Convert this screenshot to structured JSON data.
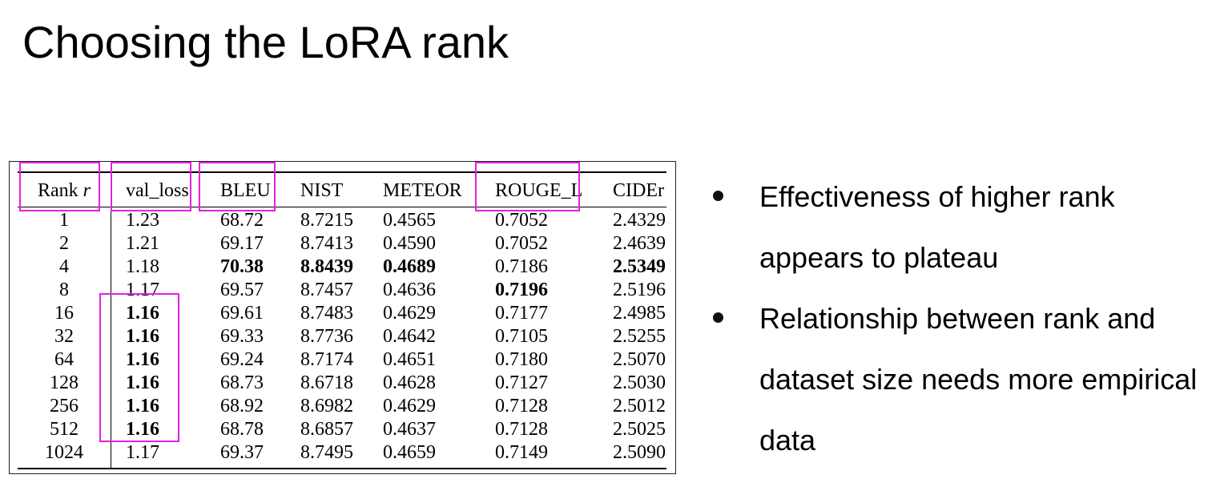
{
  "title": "Choosing the LoRA rank",
  "table": {
    "headers": [
      "Rank r",
      "val_loss",
      "BLEU",
      "NIST",
      "METEOR",
      "ROUGE_L",
      "CIDEr"
    ],
    "rows": [
      {
        "rank": "1",
        "val_loss": "1.23",
        "bleu": "68.72",
        "nist": "8.7215",
        "meteor": "0.4565",
        "rouge": "0.7052",
        "cider": "2.4329"
      },
      {
        "rank": "2",
        "val_loss": "1.21",
        "bleu": "69.17",
        "nist": "8.7413",
        "meteor": "0.4590",
        "rouge": "0.7052",
        "cider": "2.4639"
      },
      {
        "rank": "4",
        "val_loss": "1.18",
        "bleu": "70.38",
        "nist": "8.8439",
        "meteor": "0.4689",
        "rouge": "0.7186",
        "cider": "2.5349"
      },
      {
        "rank": "8",
        "val_loss": "1.17",
        "bleu": "69.57",
        "nist": "8.7457",
        "meteor": "0.4636",
        "rouge": "0.7196",
        "cider": "2.5196"
      },
      {
        "rank": "16",
        "val_loss": "1.16",
        "bleu": "69.61",
        "nist": "8.7483",
        "meteor": "0.4629",
        "rouge": "0.7177",
        "cider": "2.4985"
      },
      {
        "rank": "32",
        "val_loss": "1.16",
        "bleu": "69.33",
        "nist": "8.7736",
        "meteor": "0.4642",
        "rouge": "0.7105",
        "cider": "2.5255"
      },
      {
        "rank": "64",
        "val_loss": "1.16",
        "bleu": "69.24",
        "nist": "8.7174",
        "meteor": "0.4651",
        "rouge": "0.7180",
        "cider": "2.5070"
      },
      {
        "rank": "128",
        "val_loss": "1.16",
        "bleu": "68.73",
        "nist": "8.6718",
        "meteor": "0.4628",
        "rouge": "0.7127",
        "cider": "2.5030"
      },
      {
        "rank": "256",
        "val_loss": "1.16",
        "bleu": "68.92",
        "nist": "8.6982",
        "meteor": "0.4629",
        "rouge": "0.7128",
        "cider": "2.5012"
      },
      {
        "rank": "512",
        "val_loss": "1.16",
        "bleu": "68.78",
        "nist": "8.6857",
        "meteor": "0.4637",
        "rouge": "0.7128",
        "cider": "2.5025"
      },
      {
        "rank": "1024",
        "val_loss": "1.17",
        "bleu": "69.37",
        "nist": "8.7495",
        "meteor": "0.4659",
        "rouge": "0.7149",
        "cider": "2.5090"
      }
    ],
    "bold_cells": [
      {
        "row": 2,
        "col": "bleu"
      },
      {
        "row": 2,
        "col": "nist"
      },
      {
        "row": 2,
        "col": "meteor"
      },
      {
        "row": 2,
        "col": "cider"
      },
      {
        "row": 3,
        "col": "rouge"
      },
      {
        "row": 4,
        "col": "val_loss"
      },
      {
        "row": 5,
        "col": "val_loss"
      },
      {
        "row": 6,
        "col": "val_loss"
      },
      {
        "row": 7,
        "col": "val_loss"
      },
      {
        "row": 8,
        "col": "val_loss"
      },
      {
        "row": 9,
        "col": "val_loss"
      }
    ],
    "highlight_color": "#e61fe3"
  },
  "bullets": [
    "Effectiveness of higher rank appears to plateau",
    "Relationship between rank and dataset size needs more empirical data"
  ]
}
